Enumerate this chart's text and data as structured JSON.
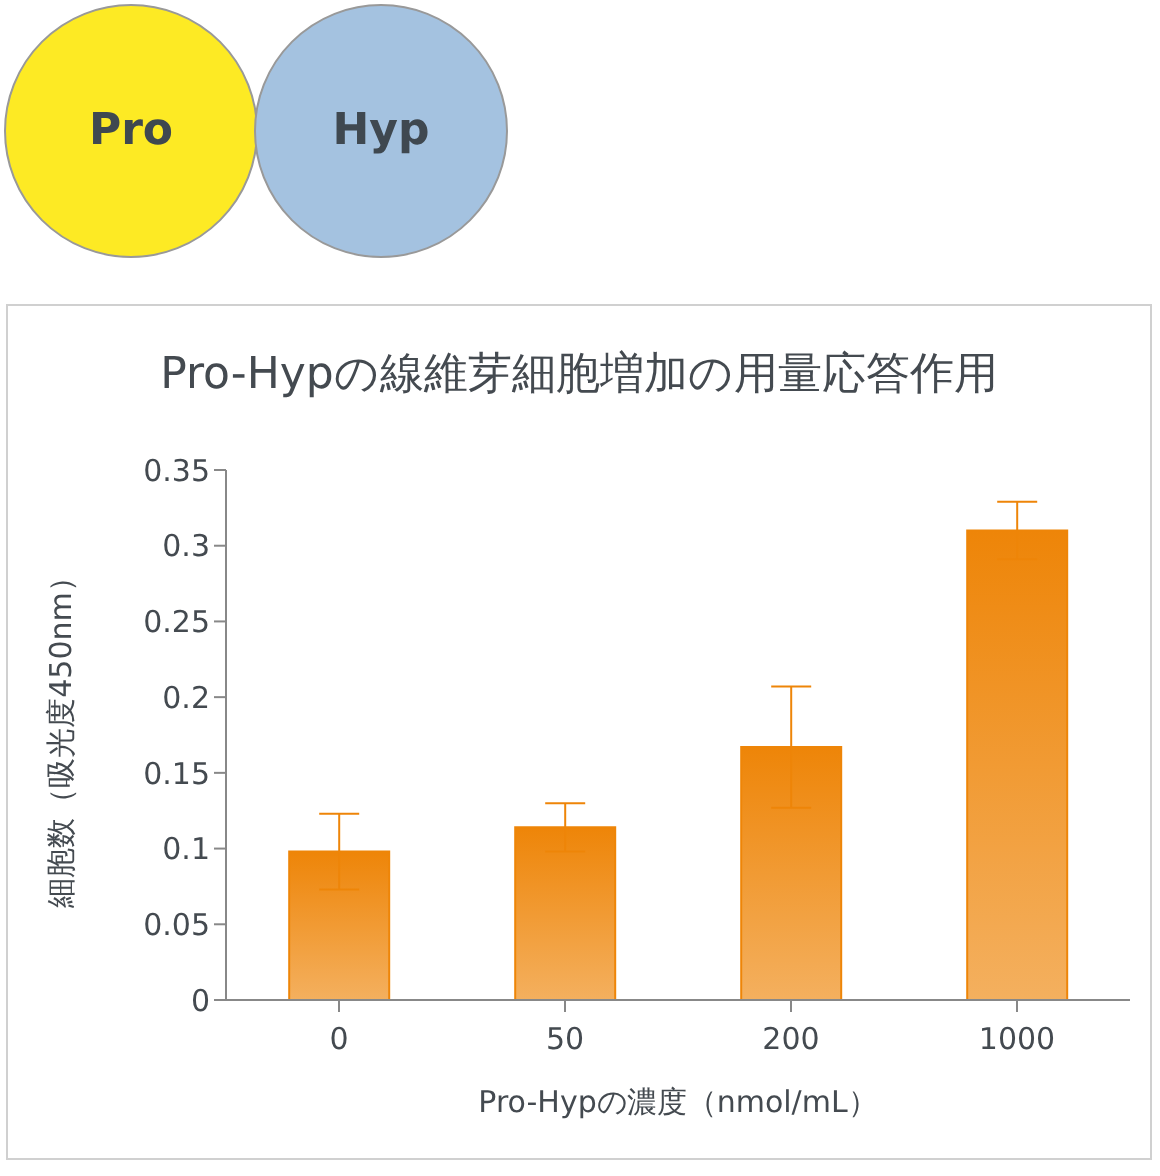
{
  "chart_data": {
    "type": "bar",
    "title": "Pro-Hypの線維芽細胞増加の用量応答作用",
    "xlabel": "Pro-Hypの濃度（nmol/mL）",
    "ylabel": "細胞数（吸光度450nm）",
    "annotations": [
      "Pro",
      "Hyp"
    ],
    "categories": [
      "0",
      "50",
      "200",
      "1000"
    ],
    "values": [
      0.098,
      0.114,
      0.167,
      0.31
    ],
    "errors": [
      0.025,
      0.016,
      0.04,
      0.019
    ],
    "color": "#ee8508",
    "ylim": [
      0,
      0.35
    ],
    "yticks": [
      0,
      0.05,
      0.1,
      0.15,
      0.2,
      0.25,
      0.3,
      0.35
    ],
    "grid": false
  }
}
